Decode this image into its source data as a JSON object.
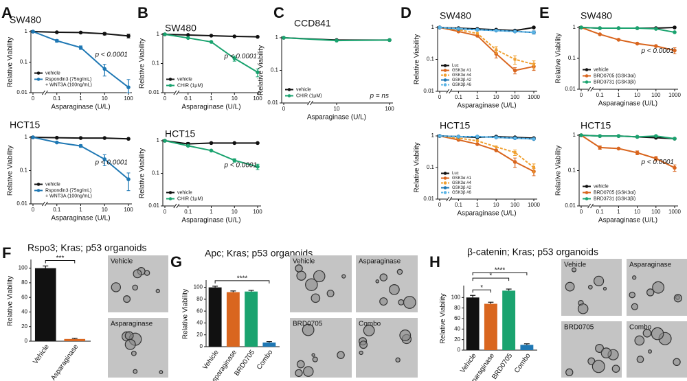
{
  "chart_data": [
    {
      "type": "line",
      "panel": "A",
      "title": "SW480",
      "x_label": "Asparaginase (U/L)",
      "y_label": "Relative Viability",
      "categories": [
        "0",
        "0.1",
        "1",
        "10",
        "100"
      ],
      "yscale": "log",
      "ylim": [
        0.01,
        1
      ],
      "yticks": [
        0.01,
        0.1,
        1
      ],
      "legend": "lower left",
      "annotation": "p < 0.0001",
      "series": [
        {
          "name": "vehicle",
          "color": "#111111",
          "values": [
            1,
            0.95,
            0.93,
            0.85,
            0.72
          ],
          "errors": [
            0,
            0,
            0.05,
            0.08,
            0.1
          ]
        },
        {
          "name": "Rspondin3 (75ng/mL)\n+ WNT3A (100ng/mL)",
          "color": "#1f78b4",
          "values": [
            1,
            0.5,
            0.3,
            0.06,
            0.015
          ],
          "errors": [
            0,
            0.05,
            0.04,
            0.025,
            0.012
          ]
        }
      ]
    },
    {
      "type": "line",
      "title": "HCT15",
      "x_label": "Asparaginase (U/L)",
      "y_label": "Relative Viability",
      "categories": [
        "0",
        "0.1",
        "1",
        "10",
        "100"
      ],
      "yscale": "log",
      "ylim": [
        0.01,
        1
      ],
      "yticks": [
        0.01,
        0.1,
        1
      ],
      "legend": "lower left",
      "annotation": "p < 0.0001",
      "series": [
        {
          "name": "vehicle",
          "color": "#111111",
          "values": [
            1,
            0.97,
            0.95,
            0.95,
            0.9
          ],
          "errors": [
            0,
            0,
            0,
            0,
            0
          ]
        },
        {
          "name": "Rspondin3 (75ng/mL)\n+ WNT3A (100ng/mL)",
          "color": "#1f78b4",
          "values": [
            1,
            0.7,
            0.55,
            0.22,
            0.055
          ],
          "errors": [
            0,
            0,
            0.05,
            0.08,
            0.03
          ]
        }
      ]
    },
    {
      "type": "line",
      "panel": "B",
      "title": "SW480",
      "x_label": "Asparaginase (U/L)",
      "y_label": "Relative Viability",
      "categories": [
        "0",
        "0.1",
        "1",
        "10",
        "100"
      ],
      "yscale": "log",
      "ylim": [
        0.01,
        1
      ],
      "yticks": [
        0.01,
        0.1,
        1
      ],
      "legend": "lower left",
      "annotation": "p < 0.0001",
      "series": [
        {
          "name": "vehicle",
          "color": "#111111",
          "values": [
            1,
            0.95,
            0.9,
            0.85,
            0.82
          ],
          "errors": [
            0,
            0,
            0,
            0,
            0
          ]
        },
        {
          "name": "CHIR (1µM)",
          "color": "#1aa36f",
          "values": [
            1,
            0.75,
            0.55,
            0.15,
            0.05
          ],
          "errors": [
            0,
            0,
            0,
            0.03,
            0.015
          ]
        }
      ]
    },
    {
      "type": "line",
      "title": "HCT15",
      "x_label": "Asparaginase (U/L)",
      "y_label": "Relative Viability",
      "categories": [
        "0",
        "0.1",
        "1",
        "10",
        "100"
      ],
      "yscale": "log",
      "ylim": [
        0.01,
        1
      ],
      "yticks": [
        0.01,
        0.1,
        1
      ],
      "legend": "lower left",
      "annotation": "p < 0.0001",
      "series": [
        {
          "name": "vehicle",
          "color": "#111111",
          "values": [
            1,
            0.8,
            0.85,
            0.85,
            0.85
          ],
          "errors": [
            0,
            0.08,
            0,
            0,
            0
          ]
        },
        {
          "name": "CHIR (1µM)",
          "color": "#1aa36f",
          "values": [
            1,
            0.7,
            0.5,
            0.25,
            0.16
          ],
          "errors": [
            0,
            0.03,
            0,
            0.03,
            0.03
          ]
        }
      ]
    },
    {
      "type": "line",
      "panel": "C",
      "title": "CCD841",
      "x_label": "Asparaginase (U/L)",
      "y_label": "Relative Viability",
      "categories": [
        "0",
        "10",
        "100"
      ],
      "yscale": "log",
      "ylim": [
        0.01,
        1
      ],
      "yticks": [
        0.01,
        0.1,
        1
      ],
      "legend": "lower left",
      "annotation": "p = ns",
      "series": [
        {
          "name": "vehicle",
          "color": "#111111",
          "values": [
            1,
            0.85,
            0.85
          ],
          "errors": [
            0,
            0,
            0
          ]
        },
        {
          "name": "CHIR (1µM)",
          "color": "#1aa36f",
          "values": [
            1,
            0.82,
            0.85
          ],
          "errors": [
            0,
            0,
            0
          ]
        }
      ]
    },
    {
      "type": "line",
      "panel": "D",
      "title": "SW480",
      "x_label": "Asparaginase (U/L)",
      "y_label": "Relative Viability",
      "categories": [
        "0",
        "0.1",
        "1",
        "10",
        "100",
        "1000"
      ],
      "yscale": "log",
      "ylim": [
        0.01,
        1
      ],
      "yticks": [
        0.01,
        0.1,
        1
      ],
      "legend": "lower left",
      "series": [
        {
          "name": "Luc",
          "color": "#111111",
          "values": [
            1,
            0.95,
            0.9,
            0.85,
            0.8,
            1
          ],
          "errors": [
            0,
            0,
            0,
            0,
            0,
            0
          ]
        },
        {
          "name": "GSK3α #1",
          "color": "#d9661f",
          "values": [
            1,
            0.75,
            0.55,
            0.15,
            0.045,
            0.06
          ],
          "errors": [
            0,
            0,
            0,
            0.04,
            0.01,
            0.015
          ]
        },
        {
          "name": "GSK3α #4",
          "color": "#f0a030",
          "dash": true,
          "values": [
            1,
            0.85,
            0.65,
            0.2,
            0.1,
            0.07
          ],
          "errors": [
            0,
            0,
            0,
            0.05,
            0.03,
            0.02
          ]
        },
        {
          "name": "GSK3β #2",
          "color": "#1f78b4",
          "values": [
            1,
            0.9,
            0.85,
            0.8,
            0.75,
            0.7
          ],
          "errors": [
            0,
            0,
            0,
            0,
            0,
            0.08
          ]
        },
        {
          "name": "GSK3β #6",
          "color": "#5bb4e5",
          "dash": true,
          "values": [
            1,
            0.92,
            0.85,
            0.8,
            0.75,
            0.7
          ],
          "errors": [
            0,
            0,
            0,
            0,
            0,
            0
          ]
        }
      ]
    },
    {
      "type": "line",
      "title": "HCT15",
      "x_label": "Asparaginase (U/L)",
      "y_label": "Relative Viability",
      "categories": [
        "0",
        "0.1",
        "1",
        "10",
        "100",
        "1000"
      ],
      "yscale": "log",
      "ylim": [
        0.01,
        1
      ],
      "yticks": [
        0.01,
        0.1,
        1
      ],
      "legend": "lower left",
      "series": [
        {
          "name": "Luc",
          "color": "#111111",
          "values": [
            1,
            0.95,
            0.9,
            0.95,
            0.9,
            0.85
          ],
          "errors": [
            0,
            0,
            0,
            0,
            0,
            0
          ]
        },
        {
          "name": "GSK3α #1",
          "color": "#d9661f",
          "values": [
            1,
            0.75,
            0.55,
            0.35,
            0.15,
            0.075
          ],
          "errors": [
            0,
            0,
            0,
            0,
            0.05,
            0.02
          ]
        },
        {
          "name": "GSK3α #4",
          "color": "#f0a030",
          "dash": true,
          "values": [
            1,
            0.85,
            0.7,
            0.45,
            0.3,
            0.1
          ],
          "errors": [
            0,
            0,
            0,
            0,
            0.06,
            0.03
          ]
        },
        {
          "name": "GSK3β #2",
          "color": "#1f78b4",
          "values": [
            1,
            0.95,
            0.95,
            0.9,
            0.85,
            0.8
          ],
          "errors": [
            0,
            0,
            0,
            0,
            0,
            0
          ]
        },
        {
          "name": "GSK3β #6",
          "color": "#5bb4e5",
          "dash": true,
          "values": [
            1,
            0.95,
            0.95,
            0.9,
            0.85,
            0.8
          ],
          "errors": [
            0,
            0,
            0,
            0,
            0,
            0
          ]
        }
      ]
    },
    {
      "type": "line",
      "panel": "E",
      "title": "SW480",
      "x_label": "Asparaginase (U/L)",
      "y_label": "Relative Viability",
      "categories": [
        "0",
        "0.1",
        "1",
        "10",
        "100",
        "1000"
      ],
      "yscale": "log",
      "ylim": [
        0.01,
        1
      ],
      "yticks": [
        0.01,
        0.1,
        1
      ],
      "legend": "lower left",
      "annotation": "p < 0.0001",
      "series": [
        {
          "name": "vehicle",
          "color": "#111111",
          "values": [
            1,
            0.95,
            0.95,
            0.95,
            0.95,
            1
          ],
          "errors": [
            0,
            0,
            0,
            0,
            0,
            0
          ]
        },
        {
          "name": "BRD0705 (GSK3αi)",
          "color": "#d9661f",
          "values": [
            1,
            0.6,
            0.4,
            0.3,
            0.25,
            0.18
          ],
          "errors": [
            0,
            0,
            0,
            0,
            0,
            0.04
          ]
        },
        {
          "name": "BRD3731 (GSK3βi)",
          "color": "#1aa36f",
          "values": [
            1,
            0.95,
            0.95,
            0.95,
            0.9,
            0.7
          ],
          "errors": [
            0,
            0,
            0,
            0,
            0,
            0
          ]
        }
      ]
    },
    {
      "type": "line",
      "title": "HCT15",
      "x_label": "Asparaginase (U/L)",
      "y_label": "Relative Viability",
      "categories": [
        "0",
        "0.1",
        "1",
        "10",
        "100",
        "1000"
      ],
      "yscale": "log",
      "ylim": [
        0.01,
        1
      ],
      "yticks": [
        0.01,
        0.1,
        1
      ],
      "legend": "lower left",
      "annotation": "p < 0.0001",
      "series": [
        {
          "name": "vehicle",
          "color": "#111111",
          "values": [
            1,
            0.95,
            0.95,
            0.9,
            0.85,
            0.8
          ],
          "errors": [
            0,
            0,
            0,
            0,
            0,
            0
          ]
        },
        {
          "name": "BRD0705 (GSK3αi)",
          "color": "#d9661f",
          "values": [
            1,
            0.45,
            0.42,
            0.32,
            0.22,
            0.12
          ],
          "errors": [
            0,
            0.05,
            0,
            0.04,
            0.03,
            0.025
          ]
        },
        {
          "name": "BRD3731 (GSK3βi)",
          "color": "#1aa36f",
          "values": [
            1,
            0.95,
            0.95,
            0.9,
            0.95,
            0.8
          ],
          "errors": [
            0,
            0,
            0,
            0,
            0,
            0
          ]
        }
      ]
    },
    {
      "type": "bar",
      "panel": "F",
      "title": "Rspo3; Kras; p53 organoids",
      "y_label": "Relative Viability",
      "categories": [
        "Vehicle",
        "Asparaginase"
      ],
      "values": [
        100,
        3
      ],
      "errors": [
        3,
        1
      ],
      "colors": [
        "#111111",
        "#d9661f"
      ],
      "ylim": [
        0,
        110
      ],
      "yticks": [
        0,
        20,
        40,
        60,
        80,
        100
      ],
      "significance": [
        {
          "from": 0,
          "to": 1,
          "label": "***"
        }
      ],
      "images": [
        "Vehicle",
        "Asparaginase"
      ]
    },
    {
      "type": "bar",
      "panel": "G",
      "title": "Apc; Kras; p53 organoids",
      "y_label": "Relative Viability",
      "categories": [
        "Vehicle",
        "Asparaginase",
        "BRD0705",
        "Combo"
      ],
      "values": [
        100,
        92,
        93,
        7
      ],
      "errors": [
        2,
        2,
        2,
        1.5
      ],
      "colors": [
        "#111111",
        "#d9661f",
        "#1aa36f",
        "#1f78b4"
      ],
      "ylim": [
        0,
        110
      ],
      "yticks": [
        0,
        20,
        40,
        60,
        80,
        100
      ],
      "significance": [
        {
          "from": 0,
          "to": 3,
          "label": "****"
        }
      ],
      "images": [
        "Vehicle",
        "Asparaginase",
        "BRD0705",
        "Combo"
      ]
    },
    {
      "type": "bar",
      "panel": "H",
      "title": "β-catenin; Kras; p53 organoids",
      "y_label": "Relative Viability",
      "categories": [
        "Vehicle",
        "Asparaginase",
        "BRD0705",
        "Combo"
      ],
      "values": [
        100,
        88,
        113,
        10
      ],
      "errors": [
        4,
        3,
        3,
        2
      ],
      "colors": [
        "#111111",
        "#d9661f",
        "#1aa36f",
        "#1f78b4"
      ],
      "ylim": [
        0,
        120
      ],
      "yticks": [
        0,
        20,
        40,
        60,
        80,
        100
      ],
      "significance": [
        {
          "from": 0,
          "to": 1,
          "label": "*"
        },
        {
          "from": 0,
          "to": 2,
          "label": "*"
        },
        {
          "from": 0,
          "to": 3,
          "label": "****"
        }
      ],
      "images": [
        "Vehicle",
        "Asparaginase",
        "BRD0705",
        "Combo"
      ]
    }
  ]
}
